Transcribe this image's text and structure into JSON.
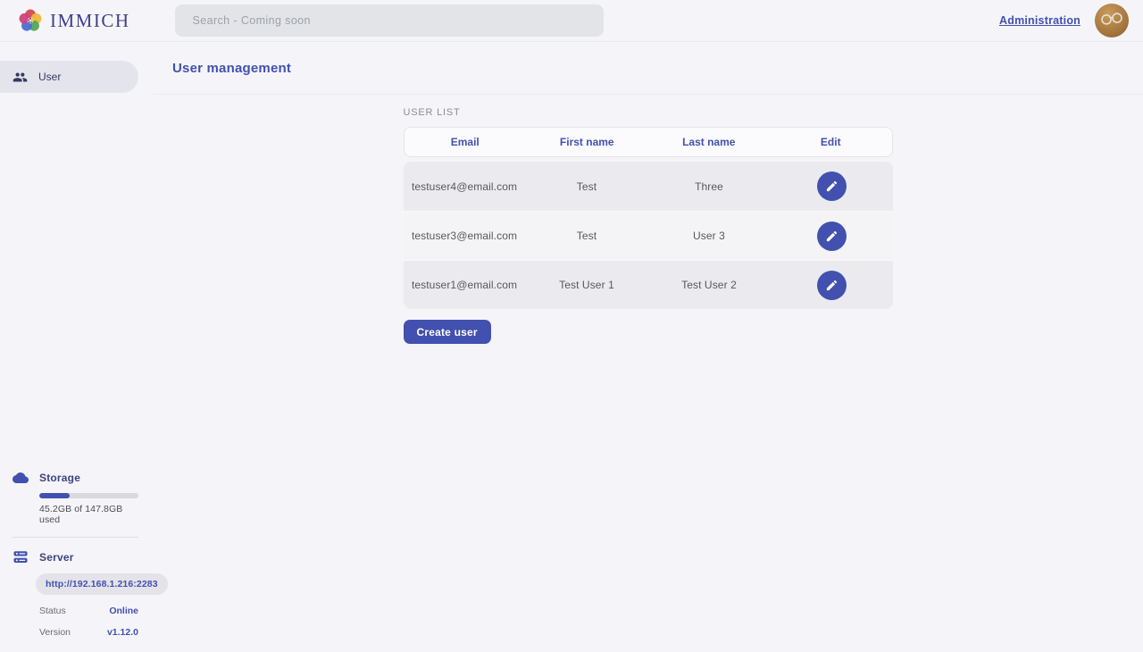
{
  "app": {
    "wordmark": "IMMICH",
    "logo_icon": "immich-flower-logo"
  },
  "header": {
    "search_placeholder": "Search - Coming soon",
    "admin_link_label": "Administration",
    "avatar_icon": "user-avatar-photo"
  },
  "sidebar": {
    "items": [
      {
        "label": "User",
        "icon": "users-icon",
        "active": true
      }
    ],
    "storage": {
      "icon": "cloud-icon",
      "title": "Storage",
      "percent_used": 30.6,
      "usage_text": "45.2GB of 147.8GB used"
    },
    "server": {
      "icon": "server-icon",
      "title": "Server",
      "url": "http://192.168.1.216:2283",
      "status_label": "Status",
      "status_value": "Online",
      "version_label": "Version",
      "version_value": "v1.12.0"
    }
  },
  "main": {
    "title": "User management",
    "section_label": "USER LIST",
    "table": {
      "columns": [
        "Email",
        "First name",
        "Last name",
        "Edit"
      ],
      "edit_icon": "pencil-icon",
      "rows": [
        {
          "email": "testuser4@email.com",
          "first_name": "Test",
          "last_name": "Three"
        },
        {
          "email": "testuser3@email.com",
          "first_name": "Test",
          "last_name": "User 3"
        },
        {
          "email": "testuser1@email.com",
          "first_name": "Test User 1",
          "last_name": "Test User 2"
        }
      ]
    },
    "create_button_label": "Create user"
  },
  "colors": {
    "primary": "#4250af",
    "wordmark": "#3f3f8e",
    "page-bg": "#f5f5f9",
    "divider": "#e9e9ee",
    "search-bg": "#e3e4e8",
    "pill-bg": "#e4e5ec",
    "sidebar-ink": "#343a60",
    "sidebar-title": "#3d4382",
    "row-dark": "#ebebef",
    "row-light": "#f4f4f7",
    "track": "#d9dade",
    "chip-bg": "#e3e3e9",
    "status-online": "#4250af"
  }
}
